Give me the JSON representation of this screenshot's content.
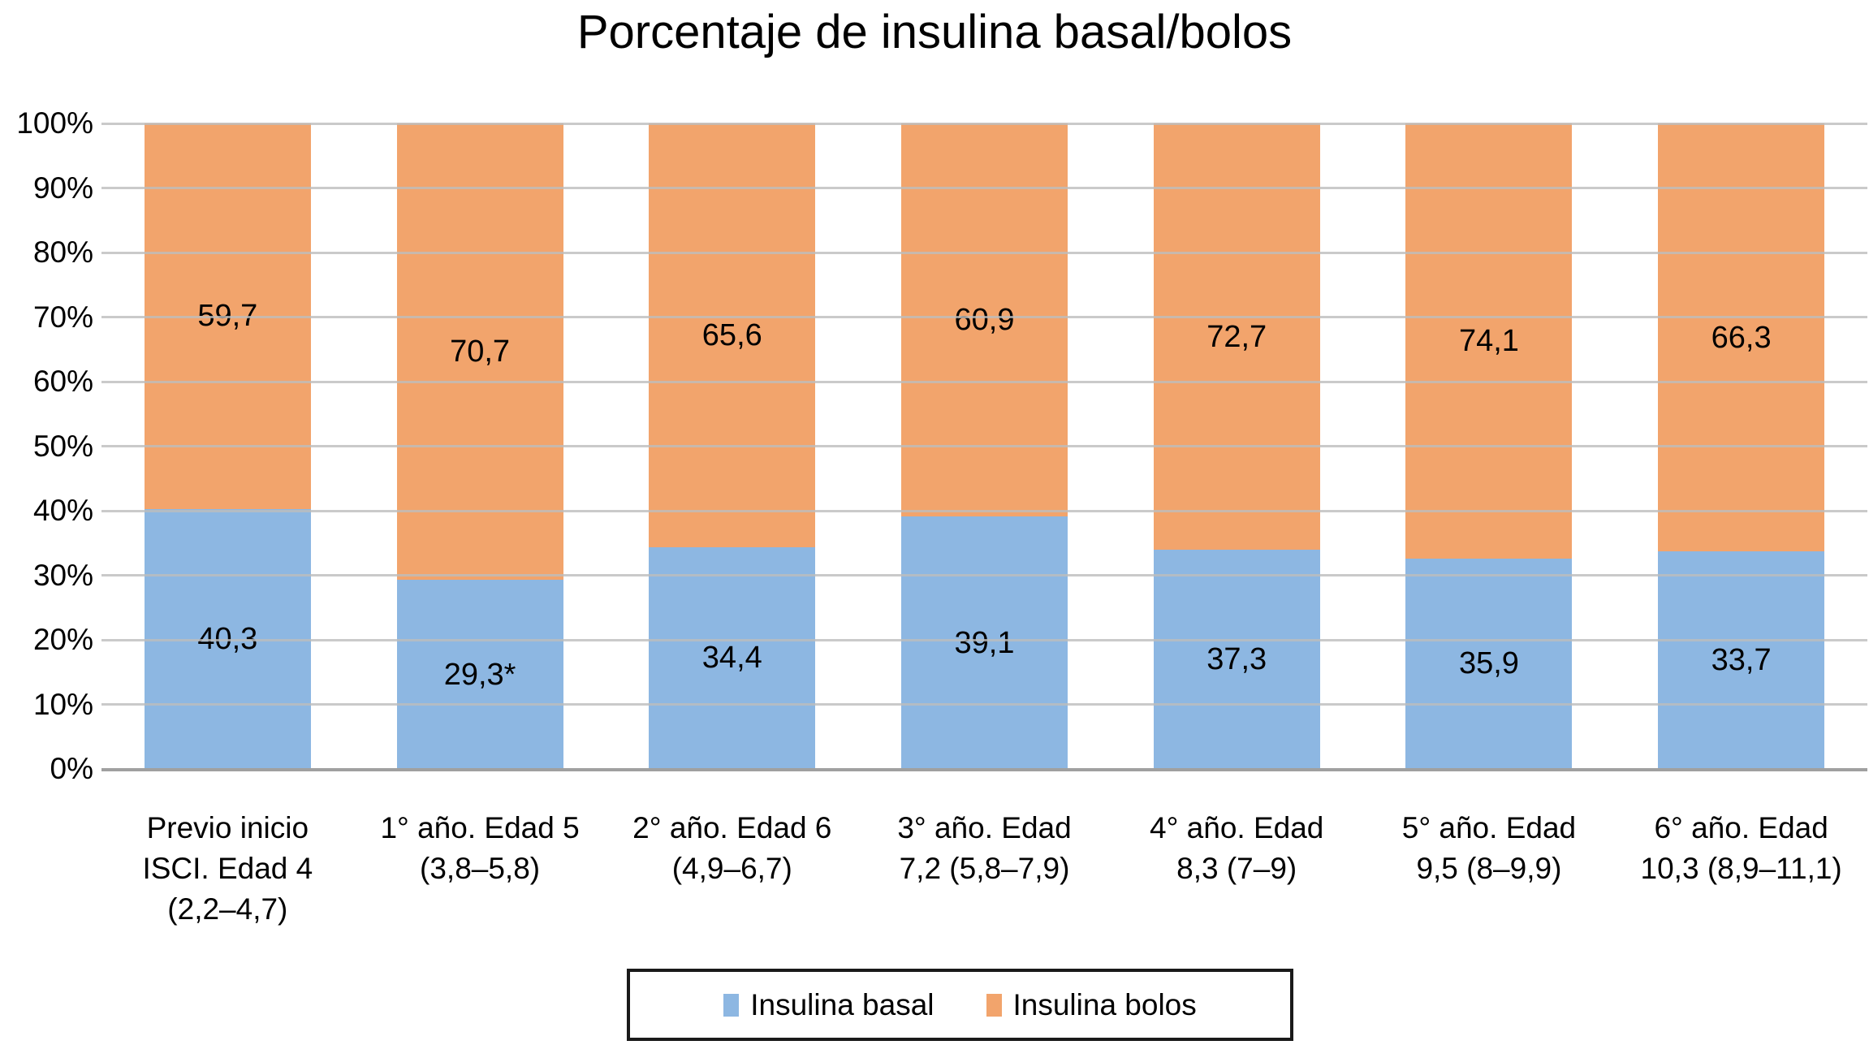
{
  "chart_data": {
    "type": "bar",
    "subtype": "stacked-100-percent",
    "title": "Porcentaje de insulina basal/bolos",
    "categories": [
      "Previo inicio ISCI. Edad 4 (2,2–4,7)",
      "1° año. Edad 5 (3,8–5,8)",
      "2° año. Edad 6 (4,9–6,7)",
      "3° año. Edad 7,2 (5,8–7,9)",
      "4° año. Edad 8,3 (7–9)",
      "5° año. Edad 9,5 (8–9,9)",
      "6° año. Edad 10,3 (8,9–11,1)"
    ],
    "category_line_breaks": [
      [
        "Previo inicio",
        "ISCI. Edad 4",
        "(2,2–4,7)"
      ],
      [
        "1° año. Edad 5",
        "(3,8–5,8)"
      ],
      [
        "2° año. Edad 6",
        "(4,9–6,7)"
      ],
      [
        "3° año. Edad",
        "7,2 (5,8–7,9)"
      ],
      [
        "4° año. Edad",
        "8,3 (7–9)"
      ],
      [
        "5° año. Edad",
        "9,5 (8–9,9)"
      ],
      [
        "6° año. Edad",
        "10,3 (8,9–11,1)"
      ]
    ],
    "series": [
      {
        "name": "Insulina basal",
        "color": "#8DB7E2",
        "values": [
          40.3,
          29.3,
          34.4,
          39.1,
          37.3,
          35.9,
          33.7
        ],
        "data_labels": [
          "40,3",
          "29,3*",
          "34,4",
          "39,1",
          "37,3",
          "35,9",
          "33,7"
        ]
      },
      {
        "name": "Insulina bolos",
        "color": "#F2A46C",
        "values": [
          59.7,
          70.7,
          65.6,
          60.9,
          72.7,
          74.1,
          66.3
        ],
        "data_labels": [
          "59,7",
          "70,7",
          "65,6",
          "60,9",
          "72,7",
          "74,1",
          "66,3"
        ]
      }
    ],
    "y_axis": {
      "min": 0,
      "max": 100,
      "step": 10,
      "tick_labels": [
        "0%",
        "10%",
        "20%",
        "30%",
        "40%",
        "50%",
        "60%",
        "70%",
        "80%",
        "90%",
        "100%"
      ]
    },
    "grid": true,
    "legend_position": "bottom"
  },
  "colors": {
    "basal": "#8DB7E2",
    "bolos": "#F2A46C",
    "gridline": "#BDBDBD",
    "axis_line": "#A0A0A0",
    "legend_border": "#1A1A1A",
    "text": "#000000",
    "background": "#FFFFFF"
  }
}
